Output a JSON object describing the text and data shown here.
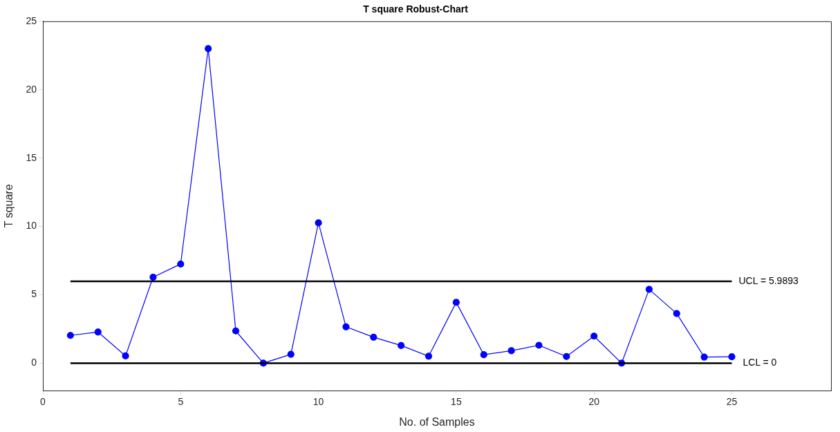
{
  "chart_data": {
    "type": "line",
    "title": "T square Robust-Chart",
    "xlabel": "No. of Samples",
    "ylabel": "T square",
    "x": [
      1,
      2,
      3,
      4,
      5,
      6,
      7,
      8,
      9,
      10,
      11,
      12,
      13,
      14,
      15,
      16,
      17,
      18,
      19,
      20,
      21,
      22,
      23,
      24,
      25
    ],
    "series": [
      {
        "color": "#0000ff",
        "values": [
          2.03,
          2.28,
          0.53,
          6.29,
          7.25,
          23.0,
          2.36,
          0,
          0.65,
          10.26,
          2.66,
          1.9,
          1.29,
          0.51,
          4.45,
          0.62,
          0.91,
          1.31,
          0.49,
          1.98,
          0,
          5.4,
          3.63,
          0.45,
          0.47
        ]
      }
    ],
    "xlim": [
      0,
      28.6
    ],
    "xticks": [
      0,
      5,
      10,
      15,
      20,
      25
    ],
    "ylim": [
      -2,
      25
    ],
    "yticks": [
      0,
      5,
      10,
      15,
      20,
      25
    ],
    "ref_lines": [
      {
        "axis": "y",
        "value": 5.9893,
        "label": "UCL = 5.9893",
        "color": "#000000"
      },
      {
        "axis": "y",
        "value": 0,
        "label": "LCL = 0",
        "color": "#000000"
      }
    ],
    "marker": "circle",
    "line_style": "solid",
    "grid": false,
    "legend": false
  }
}
